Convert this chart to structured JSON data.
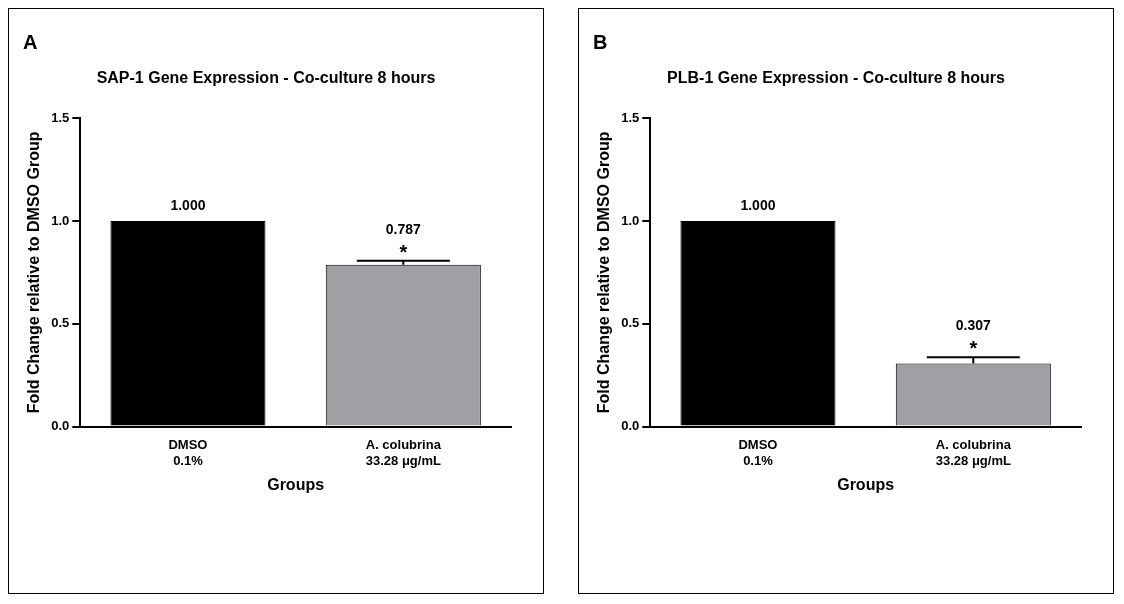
{
  "chart_data": [
    {
      "type": "bar",
      "title": "SAP-1 Gene Expression - Co-culture 8 hours",
      "xlabel": "Groups",
      "ylabel": "Fold Change relative to DMSO Group",
      "categories": [
        "DMSO\n0.1%",
        "A. colubrina\n33.28 μg/mL"
      ],
      "values": [
        1.0,
        0.787
      ],
      "errors": [
        null,
        0.02
      ],
      "colors": [
        "#000000",
        "#a0a0a4"
      ],
      "value_labels": [
        "1.000",
        "0.787"
      ],
      "ylim": [
        0,
        1.5
      ],
      "yticks": [
        {
          "value": 0,
          "label": "0.0"
        },
        {
          "value": 0.5,
          "label": "0.5"
        },
        {
          "value": 1,
          "label": "1.0"
        },
        {
          "value": 1.5,
          "label": "1.5"
        }
      ],
      "grid": false,
      "legend": false,
      "annotations": [
        "A",
        {
          "text": "*",
          "x": "A. colubrina\n33.28 μg/mL",
          "y": 0.807
        }
      ]
    },
    {
      "type": "bar",
      "title": "PLB-1 Gene Expression - Co-culture 8 hours",
      "xlabel": "Groups",
      "ylabel": "Fold Change relative to DMSO Group",
      "categories": [
        "DMSO\n0.1%",
        "A. colubrina\n33.28 μg/mL"
      ],
      "values": [
        1.0,
        0.307
      ],
      "errors": [
        null,
        0.03
      ],
      "colors": [
        "#000000",
        "#a0a0a4"
      ],
      "value_labels": [
        "1.000",
        "0.307"
      ],
      "ylim": [
        0,
        1.5
      ],
      "yticks": [
        {
          "value": 0,
          "label": "0.0"
        },
        {
          "value": 0.5,
          "label": "0.5"
        },
        {
          "value": 1,
          "label": "1.0"
        },
        {
          "value": 1.5,
          "label": "1.5"
        }
      ],
      "grid": false,
      "legend": false,
      "annotations": [
        "B",
        {
          "text": "*",
          "x": "A. colubrina\n33.28 μg/mL",
          "y": 0.337
        }
      ]
    }
  ]
}
